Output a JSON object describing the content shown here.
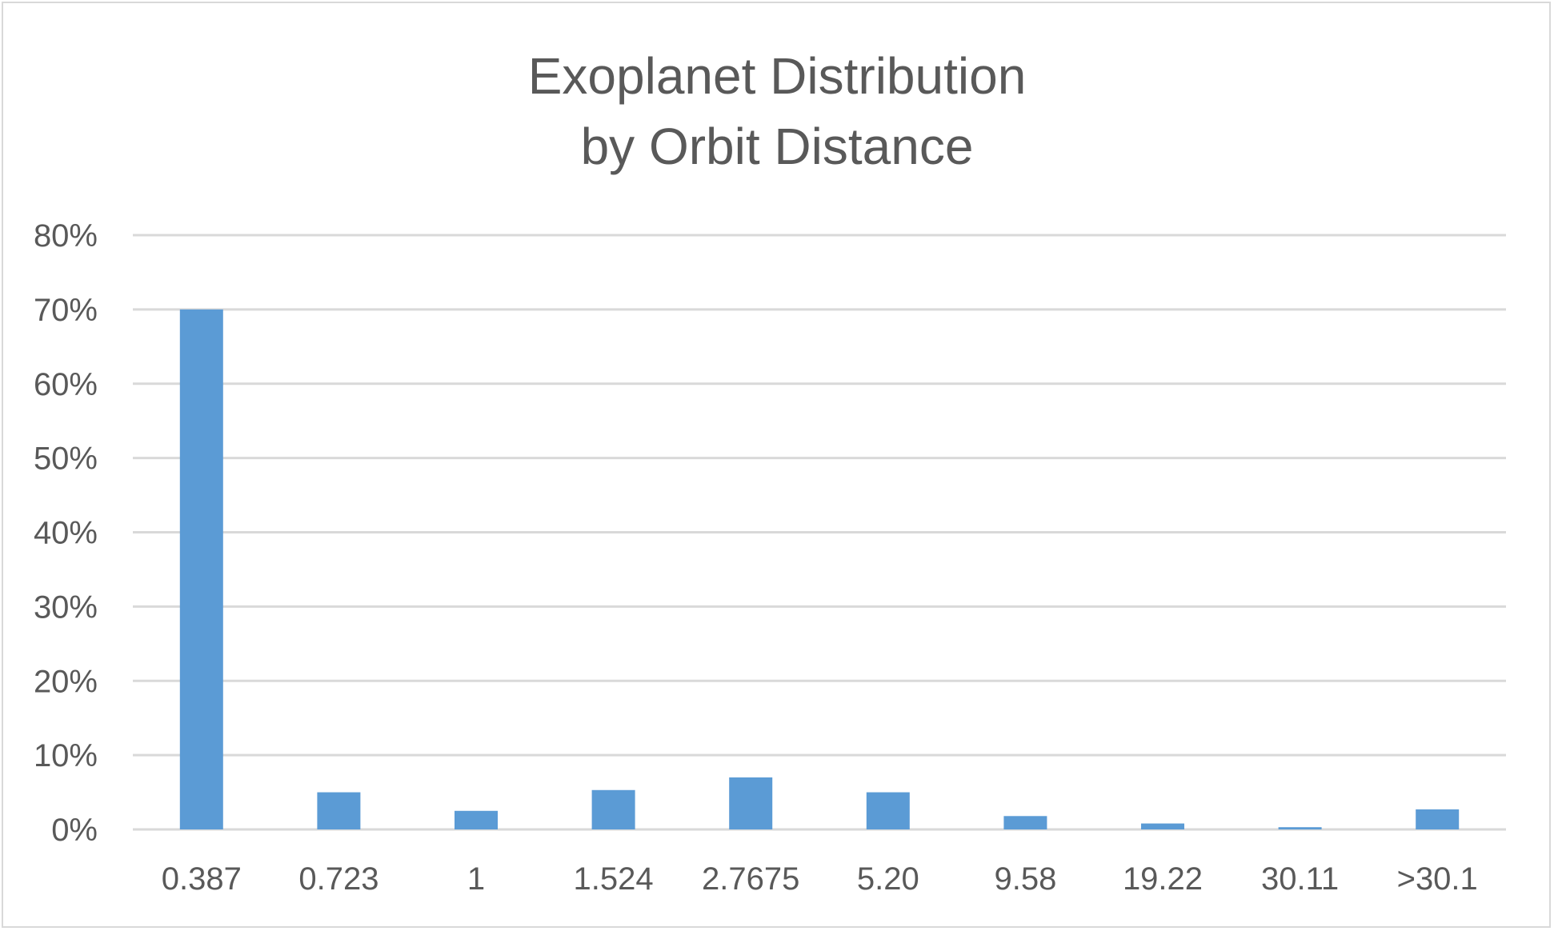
{
  "chart_data": {
    "type": "bar",
    "title_lines": [
      "Exoplanet Distribution",
      "by Orbit Distance"
    ],
    "categories": [
      "0.387",
      "0.723",
      "1",
      "1.524",
      "2.7675",
      "5.20",
      "9.58",
      "19.22",
      "30.11",
      ">30.1"
    ],
    "values": [
      70,
      5,
      2.5,
      5.3,
      7,
      5,
      1.8,
      0.8,
      0.3,
      2.7
    ],
    "y_ticks": [
      "0%",
      "10%",
      "20%",
      "30%",
      "40%",
      "50%",
      "60%",
      "70%",
      "80%"
    ],
    "ylim": [
      0,
      80
    ],
    "grid": true,
    "legend": "none",
    "colors": {
      "bar": "#5b9bd5",
      "grid": "#d9d9d9",
      "text": "#595959"
    }
  }
}
